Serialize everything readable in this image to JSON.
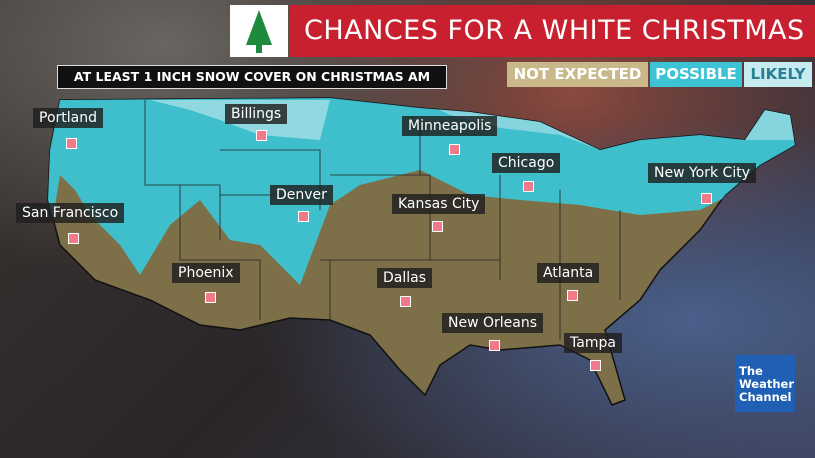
{
  "header": {
    "title": "CHANCES FOR A WHITE CHRISTMAS",
    "subtitle": "AT LEAST 1 INCH SNOW COVER ON CHRISTMAS AM"
  },
  "legend": [
    "NOT EXPECTED",
    "POSSIBLE",
    "LIKELY"
  ],
  "cities": [
    "Portland",
    "Billings",
    "Minneapolis",
    "Chicago",
    "New York City",
    "San Francisco",
    "Denver",
    "Kansas City",
    "Phoenix",
    "Dallas",
    "Atlanta",
    "New Orleans",
    "Tampa"
  ],
  "logo": [
    "The",
    "Weather",
    "Channel"
  ]
}
